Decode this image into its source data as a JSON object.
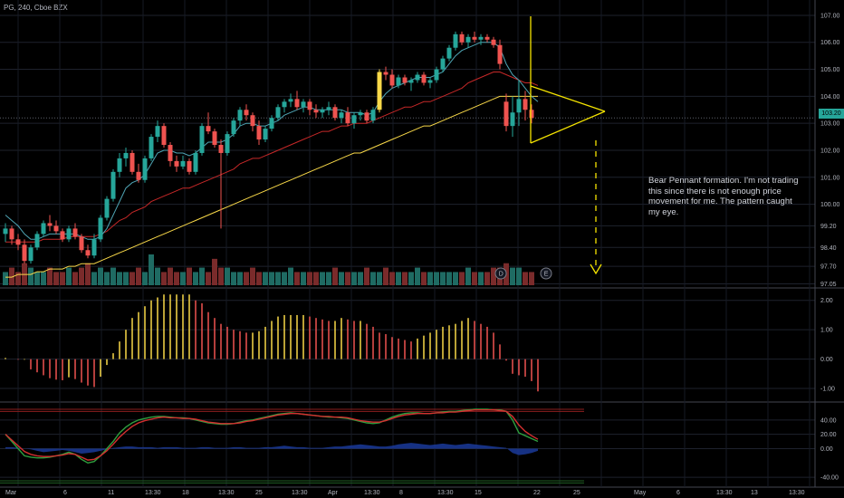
{
  "header": {
    "symbol_label": "PG, 240, Cboe BZX"
  },
  "annotation": {
    "text": "Bear Pennant formation. I'm not trading this since there is not enough price movement for me. The pattern caught my eye."
  },
  "price_badge": "103.20",
  "colors": {
    "bull": "#26a69a",
    "bear": "#ef5350",
    "ema_fast": "#4fa5b5",
    "ema_mid": "#c62828",
    "ema_slow": "#f9d949",
    "pennant": "#f5e400",
    "hist_pos": "#f9d949",
    "hist_neg": "#ef5350",
    "stoch_k": "#2e9e3e",
    "stoch_d": "#d32f2f",
    "flow": "#1a3a9a"
  },
  "chart_data": [
    {
      "type": "candlestick",
      "pane": "price",
      "ylim": [
        97.0,
        107.3
      ],
      "y_ticks": [
        "107.00",
        "106.00",
        "105.00",
        "104.00",
        "103.00",
        "102.00",
        "101.00",
        "100.00",
        "99.20",
        "98.40",
        "97.70",
        "97.05"
      ],
      "x_ticks": [
        "Mar",
        "6",
        "11",
        "13:30",
        "18",
        "13:30",
        "25",
        "13:30",
        "Apr",
        "13:30",
        "8",
        "13:30",
        "15",
        "22",
        "25",
        "May",
        "6",
        "13:30",
        "13",
        "13:30"
      ],
      "last_price": 103.2,
      "markers": [
        "D",
        "E"
      ],
      "ohlc": [
        [
          98.9,
          99.3,
          98.6,
          99.1
        ],
        [
          99.1,
          99.2,
          98.5,
          98.7
        ],
        [
          98.7,
          98.9,
          98.3,
          98.5
        ],
        [
          98.5,
          98.7,
          97.8,
          97.9
        ],
        [
          97.9,
          98.5,
          97.8,
          98.4
        ],
        [
          98.4,
          99.0,
          98.3,
          98.9
        ],
        [
          98.9,
          99.4,
          98.8,
          99.3
        ],
        [
          99.3,
          99.6,
          99.0,
          99.2
        ],
        [
          99.2,
          99.4,
          98.9,
          99.0
        ],
        [
          99.0,
          99.1,
          98.6,
          98.7
        ],
        [
          98.7,
          99.2,
          98.6,
          99.1
        ],
        [
          99.1,
          99.3,
          98.7,
          98.8
        ],
        [
          98.8,
          98.9,
          98.2,
          98.3
        ],
        [
          98.3,
          98.5,
          98.0,
          98.1
        ],
        [
          98.1,
          98.9,
          98.0,
          98.7
        ],
        [
          98.7,
          99.6,
          98.6,
          99.5
        ],
        [
          99.5,
          100.3,
          99.4,
          100.2
        ],
        [
          100.2,
          101.3,
          100.1,
          101.2
        ],
        [
          101.2,
          101.9,
          101.0,
          101.7
        ],
        [
          101.7,
          102.1,
          101.4,
          101.9
        ],
        [
          101.9,
          102.0,
          101.1,
          101.2
        ],
        [
          101.2,
          101.5,
          100.8,
          100.9
        ],
        [
          100.9,
          101.8,
          100.8,
          101.7
        ],
        [
          101.7,
          102.6,
          101.6,
          102.5
        ],
        [
          102.5,
          103.1,
          102.3,
          102.9
        ],
        [
          102.9,
          103.0,
          102.1,
          102.2
        ],
        [
          102.2,
          102.3,
          101.4,
          101.6
        ],
        [
          101.6,
          101.8,
          101.2,
          101.4
        ],
        [
          101.4,
          101.8,
          101.3,
          101.6
        ],
        [
          101.6,
          101.7,
          101.1,
          101.2
        ],
        [
          101.2,
          102.0,
          101.1,
          101.9
        ],
        [
          101.9,
          103.0,
          101.8,
          102.9
        ],
        [
          102.9,
          103.4,
          102.6,
          102.7
        ],
        [
          102.7,
          102.8,
          102.1,
          102.2
        ],
        [
          102.2,
          102.4,
          99.1,
          101.9
        ],
        [
          101.9,
          102.7,
          101.8,
          102.6
        ],
        [
          102.6,
          103.2,
          102.5,
          103.1
        ],
        [
          103.1,
          103.6,
          102.9,
          103.5
        ],
        [
          103.5,
          103.7,
          103.1,
          103.3
        ],
        [
          103.3,
          103.4,
          102.7,
          102.9
        ],
        [
          102.9,
          103.1,
          102.2,
          102.4
        ],
        [
          102.4,
          102.9,
          102.3,
          102.8
        ],
        [
          102.8,
          103.3,
          102.7,
          103.2
        ],
        [
          103.2,
          103.7,
          103.1,
          103.6
        ],
        [
          103.6,
          103.9,
          103.4,
          103.8
        ],
        [
          103.8,
          104.1,
          103.6,
          103.9
        ],
        [
          103.9,
          104.2,
          103.5,
          103.6
        ],
        [
          103.6,
          103.9,
          103.4,
          103.8
        ],
        [
          103.8,
          103.9,
          103.3,
          103.5
        ],
        [
          103.5,
          103.7,
          103.2,
          103.4
        ],
        [
          103.4,
          103.6,
          103.2,
          103.5
        ],
        [
          103.5,
          103.8,
          103.3,
          103.6
        ],
        [
          103.6,
          103.7,
          103.1,
          103.2
        ],
        [
          103.2,
          103.5,
          103.0,
          103.4
        ],
        [
          103.4,
          103.6,
          102.9,
          103.0
        ],
        [
          103.0,
          103.4,
          102.8,
          103.3
        ],
        [
          103.3,
          103.5,
          103.1,
          103.4
        ],
        [
          103.4,
          103.5,
          103.0,
          103.1
        ],
        [
          103.1,
          103.6,
          103.0,
          103.5
        ],
        [
          103.5,
          105.0,
          103.4,
          104.9
        ],
        [
          104.9,
          105.1,
          104.6,
          104.8
        ],
        [
          104.8,
          105.0,
          104.3,
          104.4
        ],
        [
          104.4,
          104.8,
          104.3,
          104.7
        ],
        [
          104.7,
          104.8,
          104.4,
          104.5
        ],
        [
          104.5,
          104.7,
          104.2,
          104.6
        ],
        [
          104.6,
          104.9,
          104.5,
          104.8
        ],
        [
          104.8,
          104.9,
          104.4,
          104.5
        ],
        [
          104.5,
          104.7,
          104.3,
          104.6
        ],
        [
          104.6,
          105.1,
          104.5,
          105.0
        ],
        [
          105.0,
          105.5,
          104.9,
          105.4
        ],
        [
          105.4,
          105.9,
          105.3,
          105.8
        ],
        [
          105.8,
          106.4,
          105.7,
          106.3
        ],
        [
          106.3,
          106.4,
          105.9,
          106.0
        ],
        [
          106.0,
          106.3,
          105.8,
          106.2
        ],
        [
          106.2,
          106.4,
          106.0,
          106.1
        ],
        [
          106.1,
          106.3,
          105.9,
          106.2
        ],
        [
          106.2,
          106.3,
          106.0,
          106.1
        ],
        [
          106.1,
          106.2,
          105.8,
          105.9
        ],
        [
          105.9,
          106.1,
          105.0,
          105.2
        ],
        [
          103.8,
          104.1,
          102.7,
          102.9
        ],
        [
          102.9,
          104.0,
          102.5,
          103.4
        ],
        [
          103.4,
          104.6,
          102.9,
          103.9
        ],
        [
          103.9,
          104.2,
          103.1,
          103.5
        ],
        [
          103.5,
          103.7,
          103.0,
          103.2
        ]
      ],
      "volume": [
        3,
        4,
        3,
        5,
        4,
        3,
        3,
        4,
        3,
        3,
        4,
        3,
        4,
        5,
        3,
        4,
        3,
        4,
        3,
        3,
        3,
        4,
        3,
        7,
        4,
        3,
        4,
        3,
        3,
        4,
        3,
        4,
        3,
        6,
        4,
        4,
        3,
        3,
        3,
        4,
        3,
        3,
        3,
        3,
        3,
        4,
        3,
        3,
        3,
        3,
        3,
        3,
        4,
        3,
        3,
        3,
        3,
        4,
        3,
        3,
        4,
        3,
        3,
        3,
        3,
        4,
        3,
        3,
        3,
        3,
        3,
        3,
        3,
        4,
        3,
        3,
        3,
        4,
        4,
        5,
        4,
        4,
        3,
        3,
        3
      ],
      "ema_fast": [
        99.6,
        99.4,
        99.2,
        98.9,
        98.7,
        98.7,
        98.8,
        98.9,
        98.9,
        98.9,
        98.9,
        98.9,
        98.8,
        98.7,
        98.7,
        98.8,
        99.1,
        99.6,
        100.1,
        100.6,
        100.8,
        100.9,
        101.1,
        101.5,
        101.9,
        102.0,
        102.0,
        101.9,
        101.9,
        101.8,
        101.9,
        102.1,
        102.3,
        102.3,
        102.3,
        102.4,
        102.6,
        102.9,
        103.0,
        103.0,
        102.9,
        102.9,
        103.0,
        103.1,
        103.3,
        103.4,
        103.5,
        103.6,
        103.6,
        103.5,
        103.5,
        103.5,
        103.5,
        103.5,
        103.4,
        103.4,
        103.4,
        103.3,
        103.4,
        103.8,
        104.1,
        104.3,
        104.4,
        104.5,
        104.6,
        104.7,
        104.7,
        104.7,
        104.8,
        104.9,
        105.2,
        105.5,
        105.7,
        105.8,
        105.9,
        106.0,
        106.0,
        106.0,
        105.8,
        105.2,
        104.8,
        104.6,
        104.3,
        104.0,
        103.8
      ],
      "ema_mid": [
        98.6,
        98.6,
        98.6,
        98.6,
        98.6,
        98.6,
        98.7,
        98.7,
        98.7,
        98.7,
        98.8,
        98.8,
        98.8,
        98.8,
        98.8,
        98.9,
        99.0,
        99.2,
        99.4,
        99.5,
        99.7,
        99.8,
        99.9,
        100.1,
        100.2,
        100.3,
        100.4,
        100.5,
        100.6,
        100.6,
        100.7,
        100.8,
        100.9,
        101.0,
        101.1,
        101.2,
        101.3,
        101.5,
        101.6,
        101.7,
        101.7,
        101.8,
        101.9,
        102.0,
        102.1,
        102.2,
        102.3,
        102.4,
        102.5,
        102.6,
        102.7,
        102.7,
        102.8,
        102.9,
        102.9,
        103.0,
        103.0,
        103.0,
        103.1,
        103.2,
        103.3,
        103.4,
        103.5,
        103.6,
        103.6,
        103.7,
        103.8,
        103.8,
        103.9,
        104.0,
        104.1,
        104.2,
        104.3,
        104.5,
        104.6,
        104.7,
        104.8,
        104.9,
        104.9,
        104.8,
        104.7,
        104.6,
        104.5,
        104.5,
        104.4
      ],
      "ema_slow": [
        97.3,
        97.3,
        97.4,
        97.4,
        97.4,
        97.5,
        97.5,
        97.6,
        97.6,
        97.6,
        97.7,
        97.7,
        97.8,
        97.8,
        97.8,
        97.9,
        98.0,
        98.1,
        98.2,
        98.3,
        98.4,
        98.5,
        98.6,
        98.7,
        98.8,
        98.9,
        99.0,
        99.1,
        99.2,
        99.3,
        99.4,
        99.5,
        99.6,
        99.7,
        99.8,
        99.9,
        100.0,
        100.1,
        100.2,
        100.3,
        100.4,
        100.5,
        100.6,
        100.7,
        100.8,
        100.9,
        101.0,
        101.1,
        101.2,
        101.3,
        101.4,
        101.5,
        101.6,
        101.7,
        101.8,
        101.9,
        101.9,
        102.0,
        102.1,
        102.2,
        102.3,
        102.4,
        102.5,
        102.6,
        102.7,
        102.8,
        102.9,
        102.9,
        103.0,
        103.1,
        103.2,
        103.3,
        103.4,
        103.5,
        103.6,
        103.7,
        103.8,
        103.9,
        104.0,
        104.0,
        104.0,
        104.0,
        104.0,
        104.0,
        104.0
      ]
    },
    {
      "type": "bar",
      "pane": "oscillator",
      "ylim": [
        -1.4,
        2.3
      ],
      "y_ticks": [
        "2.00",
        "1.00",
        "0.00",
        "-1.00"
      ],
      "values": [
        0.04,
        0.0,
        -0.02,
        -0.02,
        -0.35,
        -0.45,
        -0.55,
        -0.65,
        -0.7,
        -0.72,
        -0.62,
        -0.68,
        -0.8,
        -0.9,
        -0.95,
        -0.6,
        -0.2,
        0.2,
        0.6,
        1.0,
        1.4,
        1.6,
        1.8,
        2.0,
        2.1,
        2.2,
        2.2,
        2.2,
        2.2,
        2.2,
        2.0,
        1.9,
        1.6,
        1.4,
        1.2,
        1.1,
        1.0,
        0.95,
        0.9,
        0.9,
        0.95,
        1.1,
        1.3,
        1.45,
        1.5,
        1.5,
        1.5,
        1.5,
        1.45,
        1.4,
        1.35,
        1.3,
        1.3,
        1.4,
        1.35,
        1.3,
        1.3,
        1.2,
        1.1,
        0.9,
        0.85,
        0.75,
        0.7,
        0.65,
        0.6,
        0.7,
        0.8,
        0.9,
        1.0,
        1.1,
        1.15,
        1.2,
        1.3,
        1.4,
        1.3,
        1.2,
        1.1,
        0.9,
        0.5,
        -0.05,
        -0.5,
        -0.55,
        -0.6,
        -0.75,
        -1.1
      ]
    },
    {
      "type": "line",
      "pane": "stochastic",
      "ylim": [
        -50,
        60
      ],
      "y_ticks": [
        "40.00",
        "20.00",
        "0.00",
        "-40.00"
      ],
      "series": [
        {
          "values": [
            20,
            10,
            0,
            -10,
            -12,
            -13,
            -13,
            -12,
            -10,
            -8,
            -5,
            -8,
            -15,
            -20,
            -18,
            -10,
            0,
            10,
            22,
            30,
            36,
            40,
            42,
            44,
            45,
            45,
            44,
            43,
            43,
            42,
            40,
            38,
            36,
            35,
            34,
            34,
            35,
            37,
            39,
            40,
            42,
            44,
            46,
            48,
            49,
            50,
            49,
            48,
            47,
            46,
            45,
            44,
            44,
            43,
            42,
            40,
            38,
            36,
            35,
            36,
            40,
            44,
            47,
            49,
            50,
            50,
            49,
            49,
            50,
            51,
            52,
            52,
            53,
            54,
            55,
            55,
            55,
            54,
            54,
            52,
            40,
            22,
            18,
            14,
            10
          ]
        },
        {
          "values": [
            20,
            12,
            4,
            -4,
            -8,
            -10,
            -11,
            -11,
            -10,
            -9,
            -7,
            -8,
            -12,
            -16,
            -15,
            -10,
            -3,
            6,
            16,
            24,
            31,
            36,
            39,
            41,
            43,
            44,
            43,
            43,
            42,
            42,
            41,
            39,
            37,
            36,
            35,
            35,
            35,
            36,
            38,
            39,
            41,
            43,
            45,
            47,
            48,
            49,
            49,
            48,
            47,
            46,
            45,
            45,
            44,
            44,
            43,
            41,
            39,
            38,
            37,
            37,
            39,
            42,
            45,
            47,
            48,
            49,
            49,
            49,
            50,
            50,
            51,
            51,
            52,
            53,
            54,
            54,
            54,
            54,
            53,
            52,
            45,
            33,
            24,
            18,
            13
          ]
        },
        {
          "values": [
            2,
            2,
            1,
            0,
            -1,
            -3,
            -5,
            -4,
            -3,
            -2,
            -3,
            -5,
            -7,
            -6,
            -5,
            -3,
            -1,
            1,
            2,
            3,
            3,
            2,
            2,
            2,
            1,
            2,
            2,
            2,
            1,
            1,
            1,
            2,
            2,
            1,
            1,
            1,
            2,
            2,
            1,
            1,
            1,
            2,
            2,
            3,
            4,
            3,
            2,
            2,
            1,
            1,
            1,
            2,
            3,
            3,
            4,
            5,
            6,
            5,
            4,
            3,
            3,
            4,
            6,
            7,
            8,
            7,
            6,
            5,
            6,
            7,
            6,
            5,
            6,
            7,
            6,
            5,
            4,
            3,
            2,
            1,
            -6,
            -9,
            -8,
            -6,
            -3
          ]
        }
      ]
    }
  ]
}
